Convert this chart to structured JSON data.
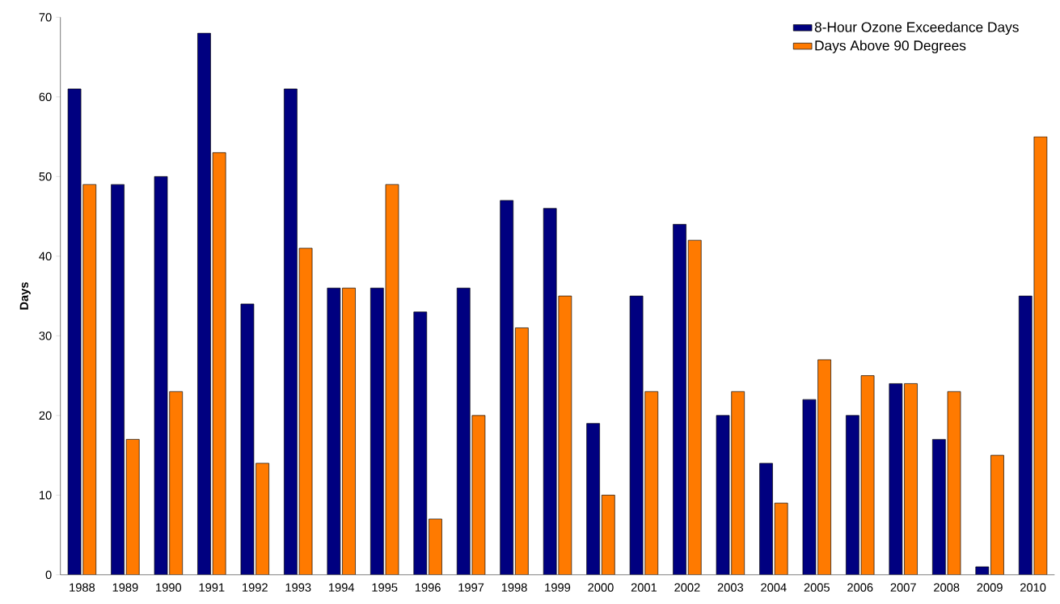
{
  "chart_data": {
    "type": "bar",
    "ylabel": "Days",
    "categories": [
      "1988",
      "1989",
      "1990",
      "1991",
      "1992",
      "1993",
      "1994",
      "1995",
      "1996",
      "1997",
      "1998",
      "1999",
      "2000",
      "2001",
      "2002",
      "2003",
      "2004",
      "2005",
      "2006",
      "2007",
      "2008",
      "2009",
      "2010"
    ],
    "series": [
      {
        "name": "8-Hour Ozone Exceedance Days",
        "color": "#000080",
        "values": [
          61,
          49,
          50,
          68,
          34,
          61,
          36,
          36,
          33,
          36,
          47,
          46,
          19,
          35,
          44,
          20,
          14,
          22,
          20,
          24,
          17,
          1,
          35
        ]
      },
      {
        "name": "Days Above 90 Degrees",
        "color": "#ff7a00",
        "values": [
          49,
          17,
          23,
          53,
          14,
          41,
          36,
          49,
          7,
          20,
          31,
          35,
          10,
          23,
          42,
          23,
          9,
          27,
          25,
          24,
          23,
          15,
          55
        ]
      }
    ],
    "ylim": [
      0,
      70
    ],
    "yticks": [
      0,
      10,
      20,
      30,
      40,
      50,
      60,
      70
    ],
    "grid": false,
    "legend": "top right"
  }
}
